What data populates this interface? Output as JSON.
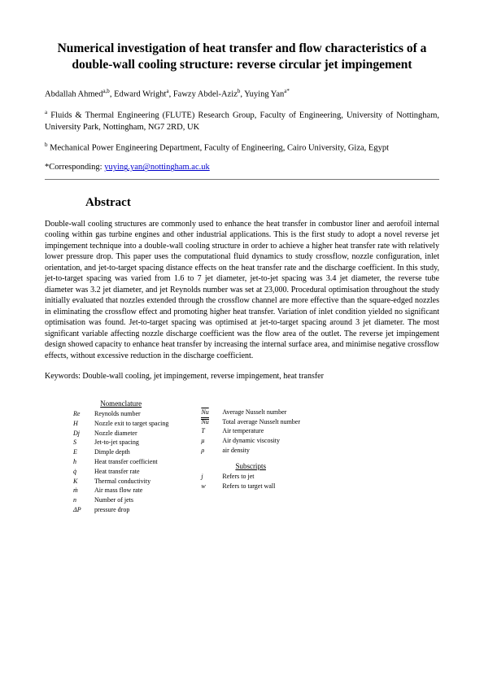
{
  "title": "Numerical investigation of heat transfer and flow characteristics of a double-wall cooling structure: reverse circular jet impingement",
  "authors_line": "Abdallah Ahmed",
  "author_sup1": "a,b",
  "author2": ", Edward Wright",
  "author_sup2": "a",
  "author3": ", Fawzy Abdel-Aziz",
  "author_sup3": "b",
  "author4": ", Yuying Yan",
  "author_sup4": "a*",
  "aff_a_sup": "a",
  "aff_a": " Fluids & Thermal Engineering (FLUTE) Research Group, Faculty of Engineering, University of Nottingham, University Park, Nottingham, NG7 2RD, UK",
  "aff_b_sup": "b",
  "aff_b": " Mechanical Power Engineering Department, Faculty of Engineering, Cairo University, Giza, Egypt",
  "corresponding_prefix": "*Corresponding: ",
  "corresponding_email": "yuying.yan@nottingham.ac.uk",
  "abstract_heading": "Abstract",
  "abstract_body": "Double-wall cooling structures are commonly used to enhance the heat transfer in combustor liner and aerofoil internal cooling within gas turbine engines and other industrial applications. This is the first study to adopt a novel reverse jet impingement technique into a double-wall cooling structure in order to achieve a higher heat transfer rate with relatively lower pressure drop. This paper uses the computational fluid dynamics to study crossflow, nozzle configuration, inlet orientation, and jet-to-target spacing distance effects on the heat transfer rate and the discharge coefficient. In this study, jet-to-target spacing was varied from 1.6 to 7 jet diameter, jet-to-jet spacing was 3.4 jet diameter, the reverse tube diameter was 3.2 jet diameter, and jet Reynolds number was set at 23,000. Procedural optimisation throughout the study initially evaluated that nozzles extended through the crossflow channel are more effective than the square-edged nozzles in eliminating the crossflow effect and promoting higher heat transfer. Variation of inlet condition yielded no significant optimisation was found. Jet-to-target spacing was optimised at jet-to-target spacing around 3 jet diameter. The most significant variable affecting nozzle discharge coefficient was the flow area of the outlet. The reverse jet impingement design showed capacity to enhance heat transfer by increasing the internal surface area, and minimise negative crossflow effects, without excessive reduction in the discharge coefficient.",
  "keywords": "Keywords: Double-wall cooling, jet impingement, reverse impingement, heat transfer",
  "nomenclature_heading": "Nomenclature",
  "subscripts_heading": "Subscripts",
  "nom_left": [
    {
      "sym": "Re",
      "desc": "Reynolds number"
    },
    {
      "sym": "H",
      "desc": "Nozzle exit to target spacing"
    },
    {
      "sym": "Dj",
      "desc": "Nozzle diameter"
    },
    {
      "sym": "S",
      "desc": "Jet-to-jet spacing"
    },
    {
      "sym": "E",
      "desc": "Dimple depth"
    },
    {
      "sym": "h",
      "desc": "Heat transfer coefficient"
    },
    {
      "sym": "q̇",
      "desc": "Heat transfer rate"
    },
    {
      "sym": "K",
      "desc": "Thermal conductivity"
    },
    {
      "sym": "ṁ",
      "desc": "Air mass flow rate"
    },
    {
      "sym": "n",
      "desc": "Number of jets"
    },
    {
      "sym": "ΔP",
      "desc": "pressure drop"
    }
  ],
  "nom_right": [
    {
      "sym": "Nu",
      "desc": "Average Nusselt number",
      "style": "overline"
    },
    {
      "sym": "Nu",
      "desc": "Total average Nusselt number",
      "style": "dbl-overline"
    },
    {
      "sym": "T",
      "desc": "Air temperature"
    },
    {
      "sym": "μ",
      "desc": "Air dynamic viscosity"
    },
    {
      "sym": "ρ",
      "desc": "air density"
    }
  ],
  "subscripts": [
    {
      "sym": "j",
      "desc": "Refers to jet"
    },
    {
      "sym": "w",
      "desc": "Refers to target wall"
    }
  ]
}
